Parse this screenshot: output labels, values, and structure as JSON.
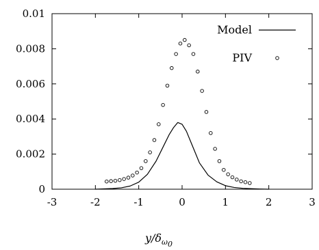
{
  "chart_data": {
    "type": "line",
    "title": "",
    "xlabel": "y/δ_ω0",
    "ylabel": "",
    "xlim": [
      -3,
      3
    ],
    "ylim": [
      0,
      0.01
    ],
    "x_ticks": [
      "-3",
      "-2",
      "-1",
      "0",
      "1",
      "2",
      "3"
    ],
    "y_ticks": [
      "0",
      "0.002",
      "0.004",
      "0.006",
      "0.008",
      "0.01"
    ],
    "grid": false,
    "legend_position": "top-right",
    "series": [
      {
        "name": "Model",
        "style": "line",
        "color": "#000000",
        "x": [
          -2.0,
          -1.8,
          -1.6,
          -1.4,
          -1.2,
          -1.0,
          -0.8,
          -0.6,
          -0.4,
          -0.3,
          -0.2,
          -0.1,
          0.0,
          0.1,
          0.2,
          0.3,
          0.4,
          0.6,
          0.8,
          1.0,
          1.2,
          1.4,
          1.6,
          1.8,
          2.0
        ],
        "y": [
          0.0,
          2e-05,
          4e-05,
          8e-05,
          0.00018,
          0.0004,
          0.00085,
          0.0016,
          0.0026,
          0.0031,
          0.0035,
          0.0038,
          0.0037,
          0.0033,
          0.0027,
          0.0021,
          0.0015,
          0.0008,
          0.00042,
          0.0002,
          0.0001,
          5e-05,
          3e-05,
          1e-05,
          0.0
        ]
      },
      {
        "name": "PIV",
        "style": "points",
        "color": "#000000",
        "x": [
          -1.74,
          -1.64,
          -1.54,
          -1.44,
          -1.34,
          -1.24,
          -1.14,
          -1.04,
          -0.94,
          -0.84,
          -0.74,
          -0.64,
          -0.54,
          -0.44,
          -0.34,
          -0.24,
          -0.14,
          -0.04,
          0.06,
          0.16,
          0.26,
          0.36,
          0.46,
          0.56,
          0.66,
          0.76,
          0.86,
          0.96,
          1.06,
          1.16,
          1.26,
          1.36,
          1.46,
          1.56
        ],
        "y": [
          0.00044,
          0.00046,
          0.00048,
          0.00052,
          0.00058,
          0.00066,
          0.00078,
          0.00095,
          0.0012,
          0.0016,
          0.0021,
          0.0028,
          0.0037,
          0.0048,
          0.0059,
          0.0069,
          0.0077,
          0.0083,
          0.0085,
          0.0082,
          0.0077,
          0.0067,
          0.0056,
          0.0044,
          0.0032,
          0.0023,
          0.0016,
          0.0011,
          0.00085,
          0.00068,
          0.00055,
          0.00045,
          0.0004,
          0.00035
        ]
      }
    ]
  }
}
